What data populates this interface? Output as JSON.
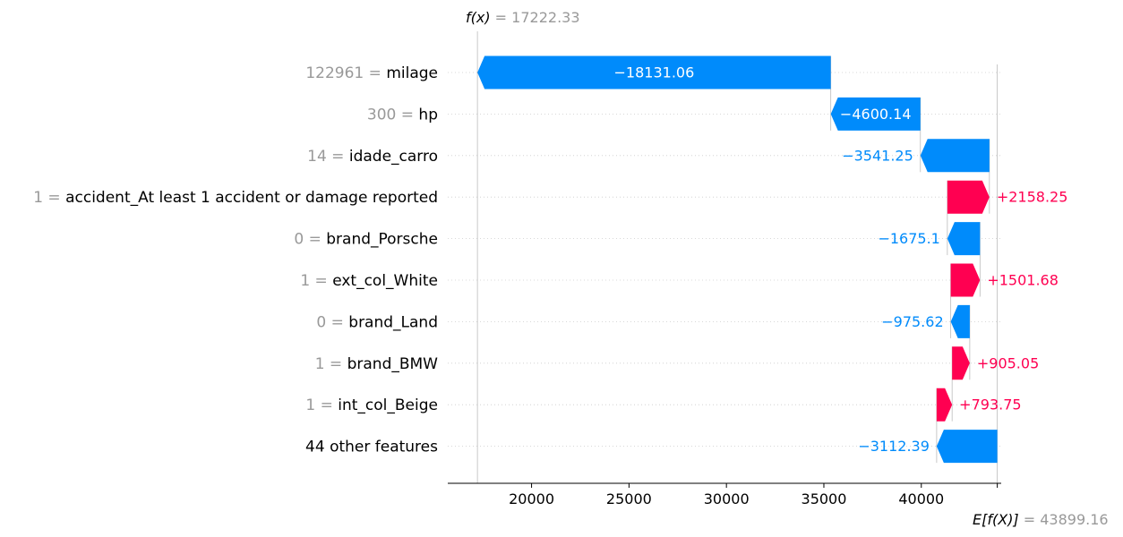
{
  "chart_data": {
    "type": "waterfall",
    "fx_label": "f(x)",
    "fx_value": "17222.33",
    "ex_label": "E[f(X)]",
    "ex_value": "43899.16",
    "fx": 17222.33,
    "base": 43899.16,
    "xlim": [
      15700,
      44100
    ],
    "xticks": [
      20000,
      25000,
      30000,
      35000,
      40000
    ],
    "colors": {
      "positive": "#ff0051",
      "negative": "#008bfb",
      "muted": "#999999"
    },
    "features": [
      {
        "value": "122961",
        "name": "milage",
        "shap": -18131.06,
        "label": "−18131.06"
      },
      {
        "value": "300",
        "name": "hp",
        "shap": -4600.14,
        "label": "−4600.14"
      },
      {
        "value": "14",
        "name": "idade_carro",
        "shap": -3541.25,
        "label": "−3541.25"
      },
      {
        "value": "1",
        "name": "accident_At least 1 accident or damage reported",
        "shap": 2158.25,
        "label": "+2158.25"
      },
      {
        "value": "0",
        "name": "brand_Porsche",
        "shap": -1675.1,
        "label": "−1675.1"
      },
      {
        "value": "1",
        "name": "ext_col_White",
        "shap": 1501.68,
        "label": "+1501.68"
      },
      {
        "value": "0",
        "name": "brand_Land",
        "shap": -975.62,
        "label": "−975.62"
      },
      {
        "value": "1",
        "name": "brand_BMW",
        "shap": 905.05,
        "label": "+905.05"
      },
      {
        "value": "1",
        "name": "int_col_Beige",
        "shap": 793.75,
        "label": "+793.75"
      },
      {
        "value": "",
        "name": "44 other features",
        "shap": -3112.39,
        "label": "−3112.39"
      }
    ]
  }
}
